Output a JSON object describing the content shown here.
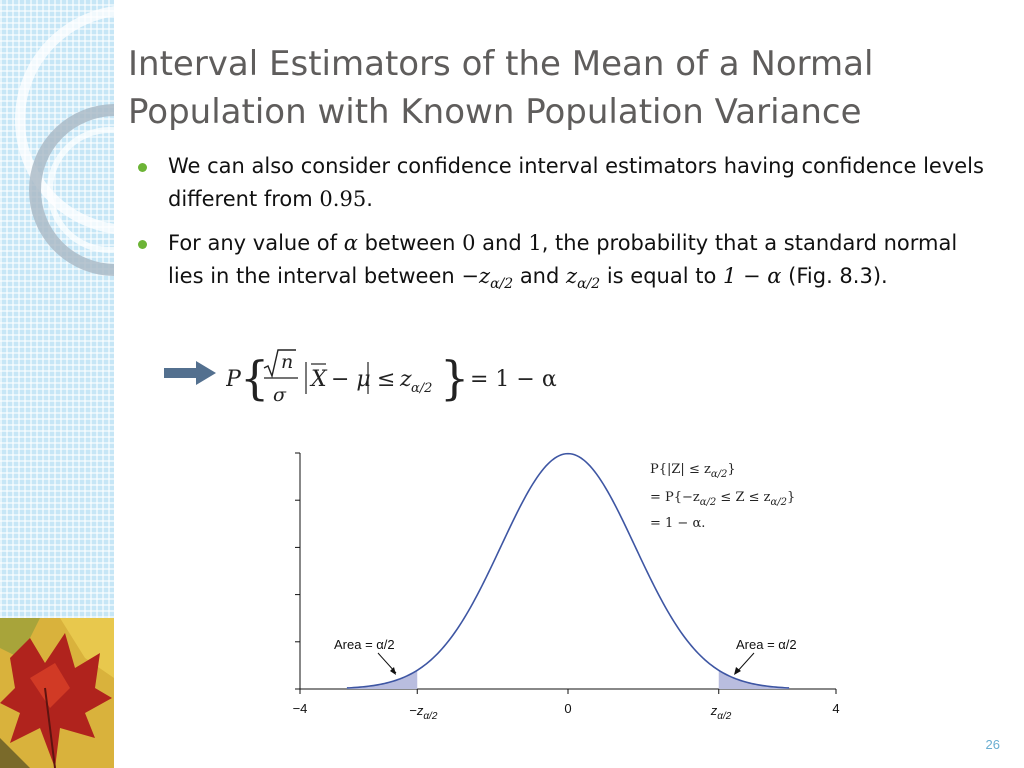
{
  "slide": {
    "title_line1": "Interval Estimators of the Mean of a Normal",
    "title_line2": "Population with Known Population Variance",
    "page_number": "26"
  },
  "bullets": {
    "b1": {
      "t1": "We can also consider confidence interval estimators having confidence levels different from ",
      "m1": "0.95",
      "t2": "."
    },
    "b2": {
      "t1": "For any value of ",
      "m1": "α",
      "t2": " between ",
      "m2": "0",
      "t3": " and ",
      "m3": "1",
      "t4": ", the probability that a standard normal lies in the interval between ",
      "m4": "−z",
      "m4_sub": "α/2",
      "t5": " and ",
      "m5": "z",
      "m5_sub": "α/2",
      "t6": " is equal to ",
      "m6": "1 − α",
      "t7": " (Fig. 8.3)."
    }
  },
  "formula": {
    "P": "P",
    "sqrt_n": "n",
    "sigma": "σ",
    "X": "X",
    "minus_mu": "− μ",
    "leq": "≤",
    "z": "z",
    "z_sub": "α/2",
    "equals": "= 1 − α"
  },
  "icons": {
    "arrow": "right-arrow-icon",
    "leaf": "autumn-leaf-icon"
  },
  "chart_data": {
    "type": "area",
    "x_ticks": [
      "−4",
      "0",
      "4"
    ],
    "xlim": [
      -4,
      4
    ],
    "ylim": [
      0,
      0.4
    ],
    "z_value": 2.25,
    "annotation_left": "Area = α/2",
    "annotation_right": "Area = α/2",
    "label_neg_z": "−z",
    "label_pos_z": "z",
    "z_subscript": "α/2",
    "equation_lines": [
      "P{|Z| ≤ z",
      "= P{−z",
      "= 1 − α."
    ],
    "curve_color": "#3e56a3",
    "shade_color": "#b9bddf"
  }
}
